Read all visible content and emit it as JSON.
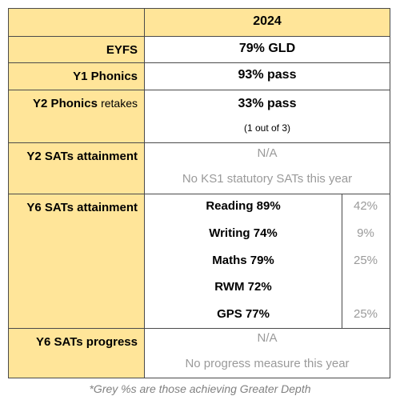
{
  "header": {
    "year": "2024"
  },
  "eyfs": {
    "label": "EYFS",
    "value": "79% GLD"
  },
  "y1_phonics": {
    "label": "Y1 Phonics",
    "value": "93% pass"
  },
  "y2_phonics": {
    "label": "Y2 Phonics",
    "label_suffix": "retakes",
    "value": "33% pass",
    "detail": "(1 out of 3)"
  },
  "y2_sats": {
    "label": "Y2 SATs attainment",
    "value": "N/A",
    "detail": "No KS1 statutory SATs this year"
  },
  "y6_sats": {
    "label": "Y6 SATs attainment",
    "subjects": [
      {
        "name": "Reading 89%",
        "gd": "42%"
      },
      {
        "name": "Writing 74%",
        "gd": "9%"
      },
      {
        "name": "Maths 79%",
        "gd": "25%"
      },
      {
        "name": "RWM 72%",
        "gd": ""
      },
      {
        "name": "GPS 77%",
        "gd": "25%"
      }
    ]
  },
  "y6_progress": {
    "label": "Y6 SATs progress",
    "value": "N/A",
    "detail": "No progress measure this year"
  },
  "footnote": "*Grey %s are those achieving Greater Depth",
  "colors": {
    "label_bg": "#ffe599",
    "grey_text": "#9a9a9a"
  }
}
